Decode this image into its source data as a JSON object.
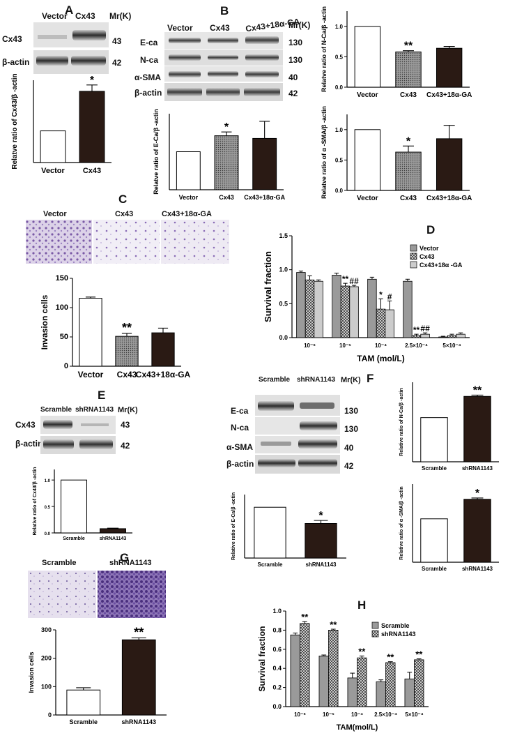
{
  "panels": {
    "A": {
      "letter": "A",
      "blot": {
        "lanes": [
          "Vector",
          "Cx43"
        ],
        "mr_header": "Mr(K)",
        "rows": [
          {
            "label": "Cx43",
            "mw": "43"
          },
          {
            "label": "β-actin",
            "mw": "42"
          }
        ]
      }
    },
    "B": {
      "letter": "B",
      "blot": {
        "lanes": [
          "Vector",
          "Cx43",
          "Cx43+18α-GA"
        ],
        "mr_header": "Mr(K)",
        "rows": [
          {
            "label": "E-ca",
            "mw": "130"
          },
          {
            "label": "N-ca",
            "mw": "130"
          },
          {
            "label": "α-SMA",
            "mw": "40"
          },
          {
            "label": "β-actin",
            "mw": "42"
          }
        ]
      }
    },
    "C": {
      "letter": "C",
      "micro_labels": [
        "Vector",
        "Cx43",
        "Cx43+18α-GA"
      ]
    },
    "D": {
      "letter": "D"
    },
    "E": {
      "letter": "E",
      "blot": {
        "lanes": [
          "Scramble",
          "shRNA1143"
        ],
        "mr_header": "Mr(K)",
        "rows": [
          {
            "label": "Cx43",
            "mw": "43"
          },
          {
            "label": "β-actin",
            "mw": "42"
          }
        ]
      },
      "blot2": {
        "lanes": [
          "Scramble",
          "shRNA1143"
        ],
        "mr_header": "Mr(K)",
        "rows": [
          {
            "label": "E-ca",
            "mw": "130"
          },
          {
            "label": "N-ca",
            "mw": "130"
          },
          {
            "label": "α-SMA",
            "mw": "40"
          },
          {
            "label": "β-actin",
            "mw": "42"
          }
        ]
      }
    },
    "F": {
      "letter": "F"
    },
    "G": {
      "letter": "G",
      "micro_labels": [
        "Scramble",
        "shRNA1143"
      ]
    },
    "H": {
      "letter": "H"
    }
  },
  "chart_data": [
    {
      "id": "A-cx43",
      "type": "bar",
      "ylabel": "Relatve ratio of Cx43/β -actin",
      "categories": [
        "Vector",
        "Cx43"
      ],
      "values": [
        1.0,
        2.25
      ],
      "errors": [
        0,
        0.2
      ],
      "sig": [
        "",
        "*"
      ],
      "colors": [
        "#ffffff",
        "#2a1a14"
      ],
      "ylim": [
        0,
        2.6
      ],
      "yticks": []
    },
    {
      "id": "B-eca",
      "type": "bar",
      "ylabel": "Relatve ratio of E-Ca/β -actin",
      "categories": [
        "Vector",
        "Cx43",
        "Cx43+18α-GA"
      ],
      "values": [
        1.0,
        1.42,
        1.35
      ],
      "errors": [
        0,
        0.1,
        0.45
      ],
      "sig": [
        "",
        "*",
        ""
      ],
      "colors": [
        "#ffffff",
        "#8c8c8c",
        "#2a1a14"
      ],
      "ylim": [
        0,
        2.0
      ],
      "yticks": []
    },
    {
      "id": "B-nca",
      "type": "bar",
      "ylabel": "Relatve ratio of N-Ca/β -actin",
      "categories": [
        "Vector",
        "Cx43",
        "Cx43+18α-GA"
      ],
      "values": [
        1.0,
        0.58,
        0.64
      ],
      "errors": [
        0,
        0.02,
        0.03
      ],
      "sig": [
        "",
        "**",
        ""
      ],
      "colors": [
        "#ffffff",
        "#8c8c8c",
        "#2a1a14"
      ],
      "ylim": [
        0,
        1.25
      ],
      "yticks": [
        "0.0",
        "0.5",
        "1.0"
      ]
    },
    {
      "id": "B-asma",
      "type": "bar",
      "ylabel": "Relatve ratio of α -SMA/β -actin",
      "categories": [
        "Vector",
        "Cx43",
        "Cx43+18α-GA"
      ],
      "values": [
        1.0,
        0.63,
        0.85
      ],
      "errors": [
        0,
        0.1,
        0.22
      ],
      "sig": [
        "",
        "*",
        ""
      ],
      "colors": [
        "#ffffff",
        "#8c8c8c",
        "#2a1a14"
      ],
      "ylim": [
        0,
        1.25
      ],
      "yticks": [
        "0.0",
        "0.5",
        "1.0"
      ]
    },
    {
      "id": "C-invasion",
      "type": "bar",
      "ylabel": "Invasion cells",
      "categories": [
        "Vector",
        "Cx43",
        "Cx43+18α-GA"
      ],
      "values": [
        116,
        51,
        57
      ],
      "errors": [
        2,
        5,
        8
      ],
      "sig": [
        "",
        "**",
        ""
      ],
      "colors": [
        "#ffffff",
        "#8c8c8c",
        "#2a1a14"
      ],
      "ylim": [
        0,
        150
      ],
      "yticks": [
        "0",
        "50",
        "100",
        "150"
      ]
    },
    {
      "id": "D-survival",
      "type": "bar",
      "ylabel": "Survival fraction",
      "xlabel": "TAM (mol/L)",
      "categories": [
        "10⁻⁶",
        "10⁻⁵",
        "10⁻⁴",
        "2.5×10⁻⁴",
        "5×10⁻⁴"
      ],
      "yticks": [
        "0.0",
        "0.5",
        "1.0",
        "1.5"
      ],
      "ylim": [
        0,
        1.5
      ],
      "series": [
        {
          "name": "Vector",
          "values": [
            0.96,
            0.92,
            0.86,
            0.83,
            0.01
          ],
          "errors": [
            0.02,
            0.03,
            0.03,
            0.03,
            0.01
          ],
          "sig": [
            "",
            "",
            "",
            "",
            ""
          ]
        },
        {
          "name": "Cx43",
          "values": [
            0.85,
            0.76,
            0.42,
            0.03,
            0.03
          ],
          "errors": [
            0.06,
            0.04,
            0.15,
            0.02,
            0.02
          ],
          "sig": [
            "",
            "**",
            "*",
            "**",
            ""
          ]
        },
        {
          "name": "Cx43+18α -GA",
          "values": [
            0.83,
            0.75,
            0.41,
            0.05,
            0.05
          ],
          "errors": [
            0.02,
            0.02,
            0.13,
            0.02,
            0.02
          ],
          "sig": [
            "",
            "##",
            "#",
            "##",
            ""
          ]
        }
      ]
    },
    {
      "id": "E-cx43",
      "type": "bar",
      "ylabel": "Relative ratio of Cx43/β -actin",
      "categories": [
        "Scramble",
        "shRNA1143"
      ],
      "values": [
        1.0,
        0.08
      ],
      "errors": [
        0,
        0.01
      ],
      "sig": [
        "",
        ""
      ],
      "colors": [
        "#ffffff",
        "#2a1a14"
      ],
      "ylim": [
        0,
        1.2
      ],
      "yticks": [
        "0.0",
        "0.5",
        "1.0"
      ]
    },
    {
      "id": "E-eca",
      "type": "bar",
      "ylabel": "Relative ratio of E-Ca/β -actin",
      "categories": [
        "Scramble",
        "shRNA1143"
      ],
      "values": [
        1.0,
        0.68
      ],
      "errors": [
        0,
        0.06
      ],
      "sig": [
        "",
        "*"
      ],
      "colors": [
        "#ffffff",
        "#2a1a14"
      ],
      "ylim": [
        0,
        1.25
      ],
      "yticks": []
    },
    {
      "id": "F-nca",
      "type": "bar",
      "ylabel": "Relative ratio of N-Ca/β -actin",
      "categories": [
        "Scramble",
        "shRNA1143"
      ],
      "values": [
        1.0,
        1.48
      ],
      "errors": [
        0,
        0.03
      ],
      "sig": [
        "",
        "**"
      ],
      "colors": [
        "#ffffff",
        "#2a1a14"
      ],
      "ylim": [
        0,
        1.8
      ],
      "yticks": []
    },
    {
      "id": "F-asma",
      "type": "bar",
      "ylabel": "Relative ratio of α -SMA/β -actin",
      "categories": [
        "Scramble",
        "shRNA1143"
      ],
      "values": [
        1.0,
        1.45
      ],
      "errors": [
        0,
        0.03
      ],
      "sig": [
        "",
        "*"
      ],
      "colors": [
        "#ffffff",
        "#2a1a14"
      ],
      "ylim": [
        0,
        1.8
      ],
      "yticks": []
    },
    {
      "id": "G-invasion",
      "type": "bar",
      "ylabel": "Invasion cells",
      "categories": [
        "Scramble",
        "shRNA1143"
      ],
      "values": [
        88,
        265
      ],
      "errors": [
        8,
        7
      ],
      "sig": [
        "",
        "**"
      ],
      "colors": [
        "#ffffff",
        "#2a1a14"
      ],
      "ylim": [
        0,
        300
      ],
      "yticks": [
        "0",
        "100",
        "200",
        "300"
      ]
    },
    {
      "id": "H-survival",
      "type": "bar",
      "ylabel": "Survival fraction",
      "xlabel": "TAM(mol/L)",
      "categories": [
        "10⁻⁶",
        "10⁻⁵",
        "10⁻⁴",
        "2.5×10⁻⁴",
        "5×10⁻⁴"
      ],
      "yticks": [
        "0.0",
        "0.2",
        "0.4",
        "0.6",
        "0.8",
        "1.0"
      ],
      "ylim": [
        0,
        1.0
      ],
      "series": [
        {
          "name": "Scramble",
          "values": [
            0.75,
            0.53,
            0.3,
            0.26,
            0.29
          ],
          "errors": [
            0.02,
            0.01,
            0.05,
            0.02,
            0.07
          ],
          "sig": [
            "",
            "",
            "",
            "",
            ""
          ]
        },
        {
          "name": "shRNA1143",
          "values": [
            0.87,
            0.8,
            0.51,
            0.46,
            0.49
          ],
          "errors": [
            0.02,
            0.01,
            0.02,
            0.01,
            0.01
          ],
          "sig": [
            "**",
            "**",
            "**",
            "**",
            "**"
          ]
        }
      ]
    }
  ]
}
